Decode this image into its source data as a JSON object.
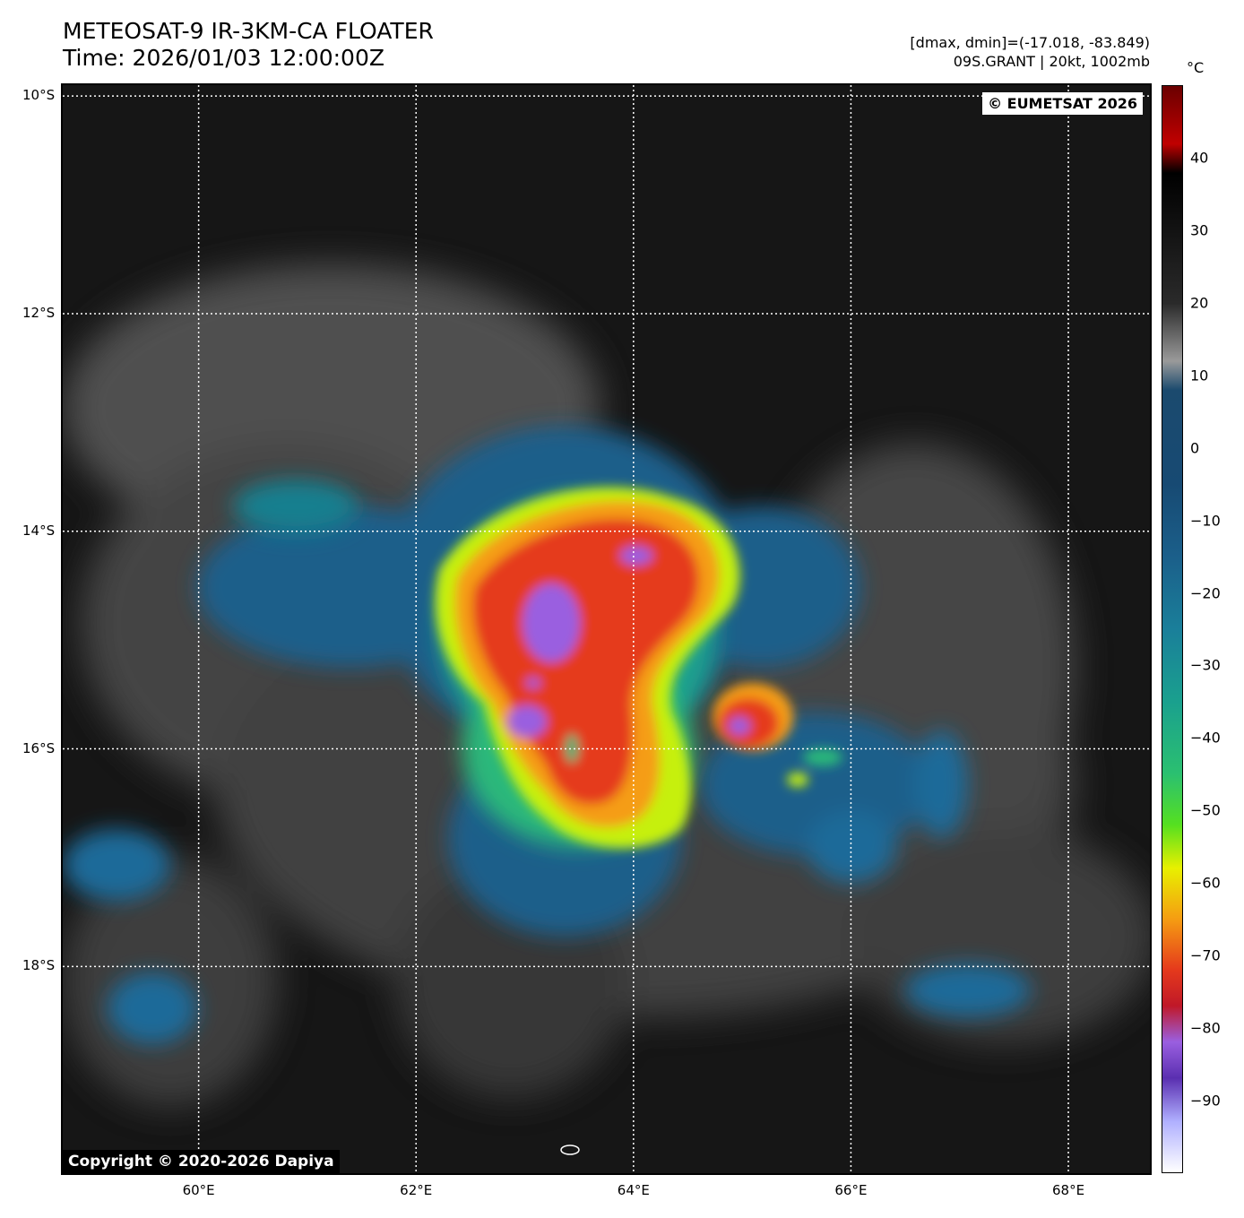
{
  "header": {
    "title_line1": "METEOSAT-9 IR-3KM-CA FLOATER",
    "title_line2": "Time: 2026/01/03 12:00:00Z",
    "info_line1": "[dmax, dmin]=(-17.018, -83.849)",
    "info_line2": "09S.GRANT | 20kt, 1002mb"
  },
  "map": {
    "lat_labels": [
      "10°S",
      "12°S",
      "14°S",
      "16°S",
      "18°S"
    ],
    "lat_values": [
      -10,
      -12,
      -14,
      -16,
      -18
    ],
    "lon_labels": [
      "60°E",
      "62°E",
      "64°E",
      "66°E",
      "68°E"
    ],
    "lon_values": [
      60,
      62,
      64,
      66,
      68
    ],
    "lon_range": [
      58.75,
      68.75
    ],
    "lat_range": [
      -19.9,
      -9.9
    ],
    "watermark_top": "© EUMETSAT 2026",
    "watermark_bottom": "Copyright © 2020-2026 Dapiya",
    "colors": {
      "cold_core": "#9a5fe0",
      "very_cold": "#e53a1c",
      "cold": "#f59d12",
      "mid": "#c6f010",
      "cool": "#2bb87a",
      "warm_cloud": "#1b5f8a",
      "clear": "#1a1a1a"
    }
  },
  "colorbar": {
    "unit": "°C",
    "ticks": [
      "40",
      "30",
      "20",
      "10",
      "0",
      "−10",
      "−20",
      "−30",
      "−40",
      "−50",
      "−60",
      "−70",
      "−80",
      "−90"
    ],
    "tick_values": [
      40,
      30,
      20,
      10,
      0,
      -10,
      -20,
      -30,
      -40,
      -50,
      -60,
      -70,
      -80,
      -90
    ],
    "range": [
      50,
      -100
    ]
  }
}
